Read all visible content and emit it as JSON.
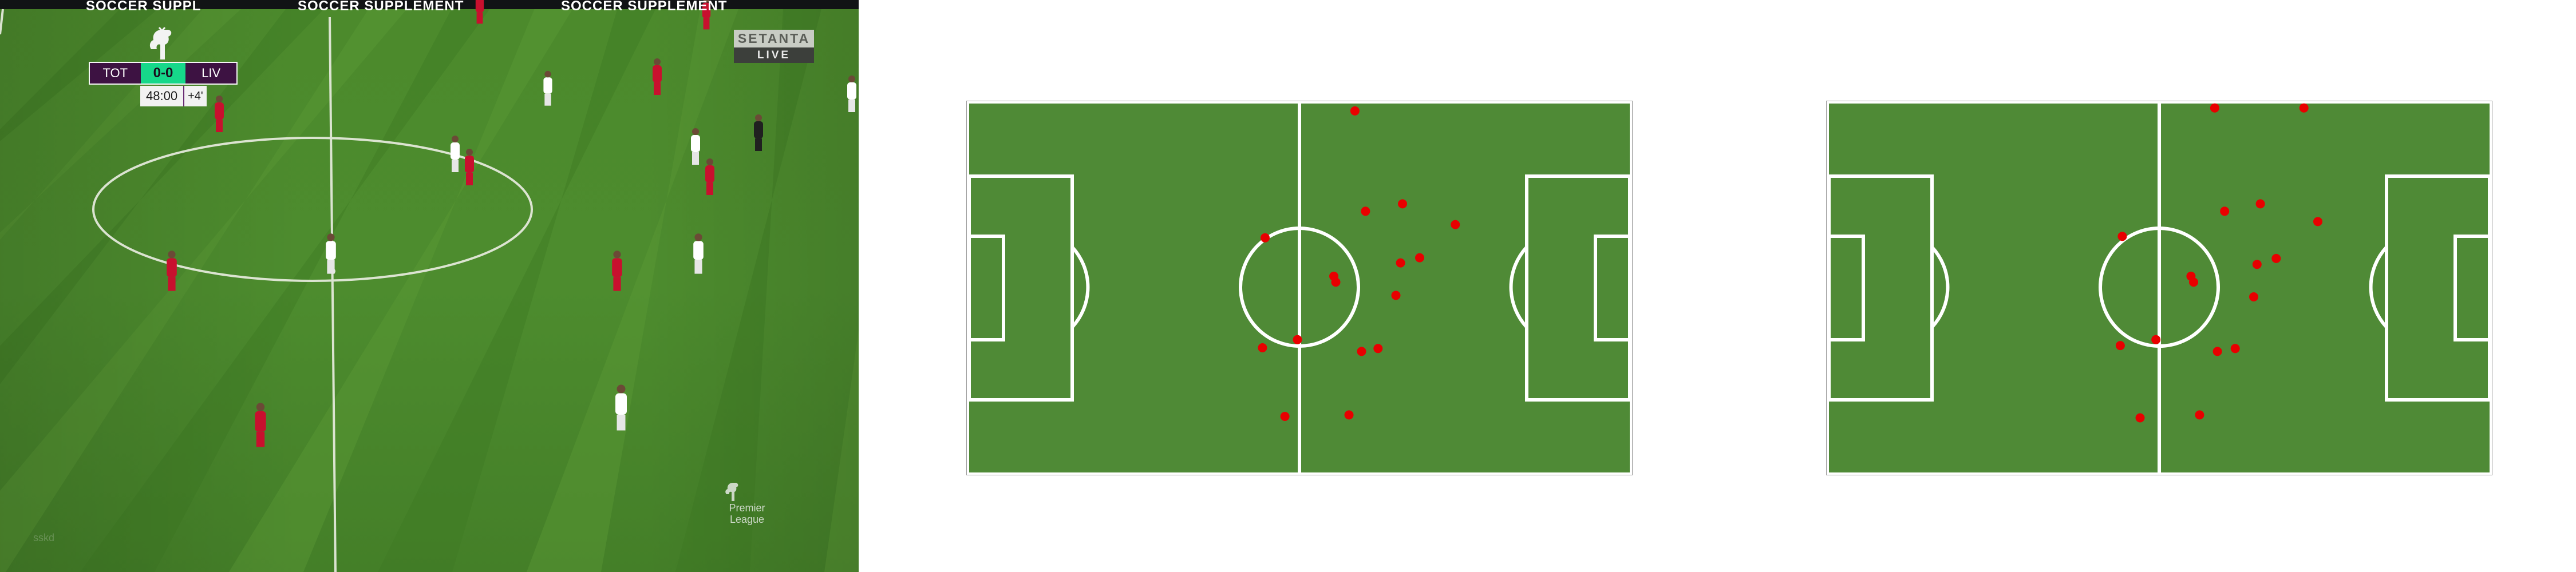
{
  "broadcast": {
    "scoreboard": {
      "home_team": "TOT",
      "score": "0-0",
      "away_team": "LIV",
      "match_time": "48:00",
      "added_time": "+4'"
    },
    "channel": {
      "name": "SETANTA",
      "status": "LIVE"
    },
    "banner": {
      "text": "SOCCER SUPPLEMENT",
      "partial_text": "SOCCER SUPPL"
    },
    "competition": {
      "line1": "Premier",
      "line2": "League"
    },
    "watermark": "sskd"
  },
  "pitch_maps": [
    {
      "name": "tactical-map-1",
      "pitch_color": "#4f8a36",
      "line_color": "#ffffff",
      "player_color": "#e80000",
      "players": [
        [
          0.584,
          0.02
        ],
        [
          0.6,
          0.292
        ],
        [
          0.656,
          0.272
        ],
        [
          0.736,
          0.328
        ],
        [
          0.448,
          0.364
        ],
        [
          0.552,
          0.468
        ],
        [
          0.555,
          0.484
        ],
        [
          0.653,
          0.432
        ],
        [
          0.682,
          0.418
        ],
        [
          0.646,
          0.52
        ],
        [
          0.497,
          0.64
        ],
        [
          0.444,
          0.662
        ],
        [
          0.594,
          0.672
        ],
        [
          0.619,
          0.664
        ],
        [
          0.478,
          0.848
        ],
        [
          0.575,
          0.844
        ]
      ]
    },
    {
      "name": "tactical-map-2",
      "pitch_color": "#4f8a36",
      "line_color": "#ffffff",
      "player_color": "#e80000",
      "players": [
        [
          0.584,
          0.012
        ],
        [
          0.719,
          0.012
        ],
        [
          0.599,
          0.292
        ],
        [
          0.653,
          0.272
        ],
        [
          0.74,
          0.32
        ],
        [
          0.444,
          0.36
        ],
        [
          0.548,
          0.468
        ],
        [
          0.552,
          0.484
        ],
        [
          0.648,
          0.436
        ],
        [
          0.677,
          0.42
        ],
        [
          0.643,
          0.524
        ],
        [
          0.495,
          0.64
        ],
        [
          0.441,
          0.656
        ],
        [
          0.588,
          0.672
        ],
        [
          0.615,
          0.664
        ],
        [
          0.471,
          0.852
        ],
        [
          0.561,
          0.844
        ]
      ]
    }
  ]
}
